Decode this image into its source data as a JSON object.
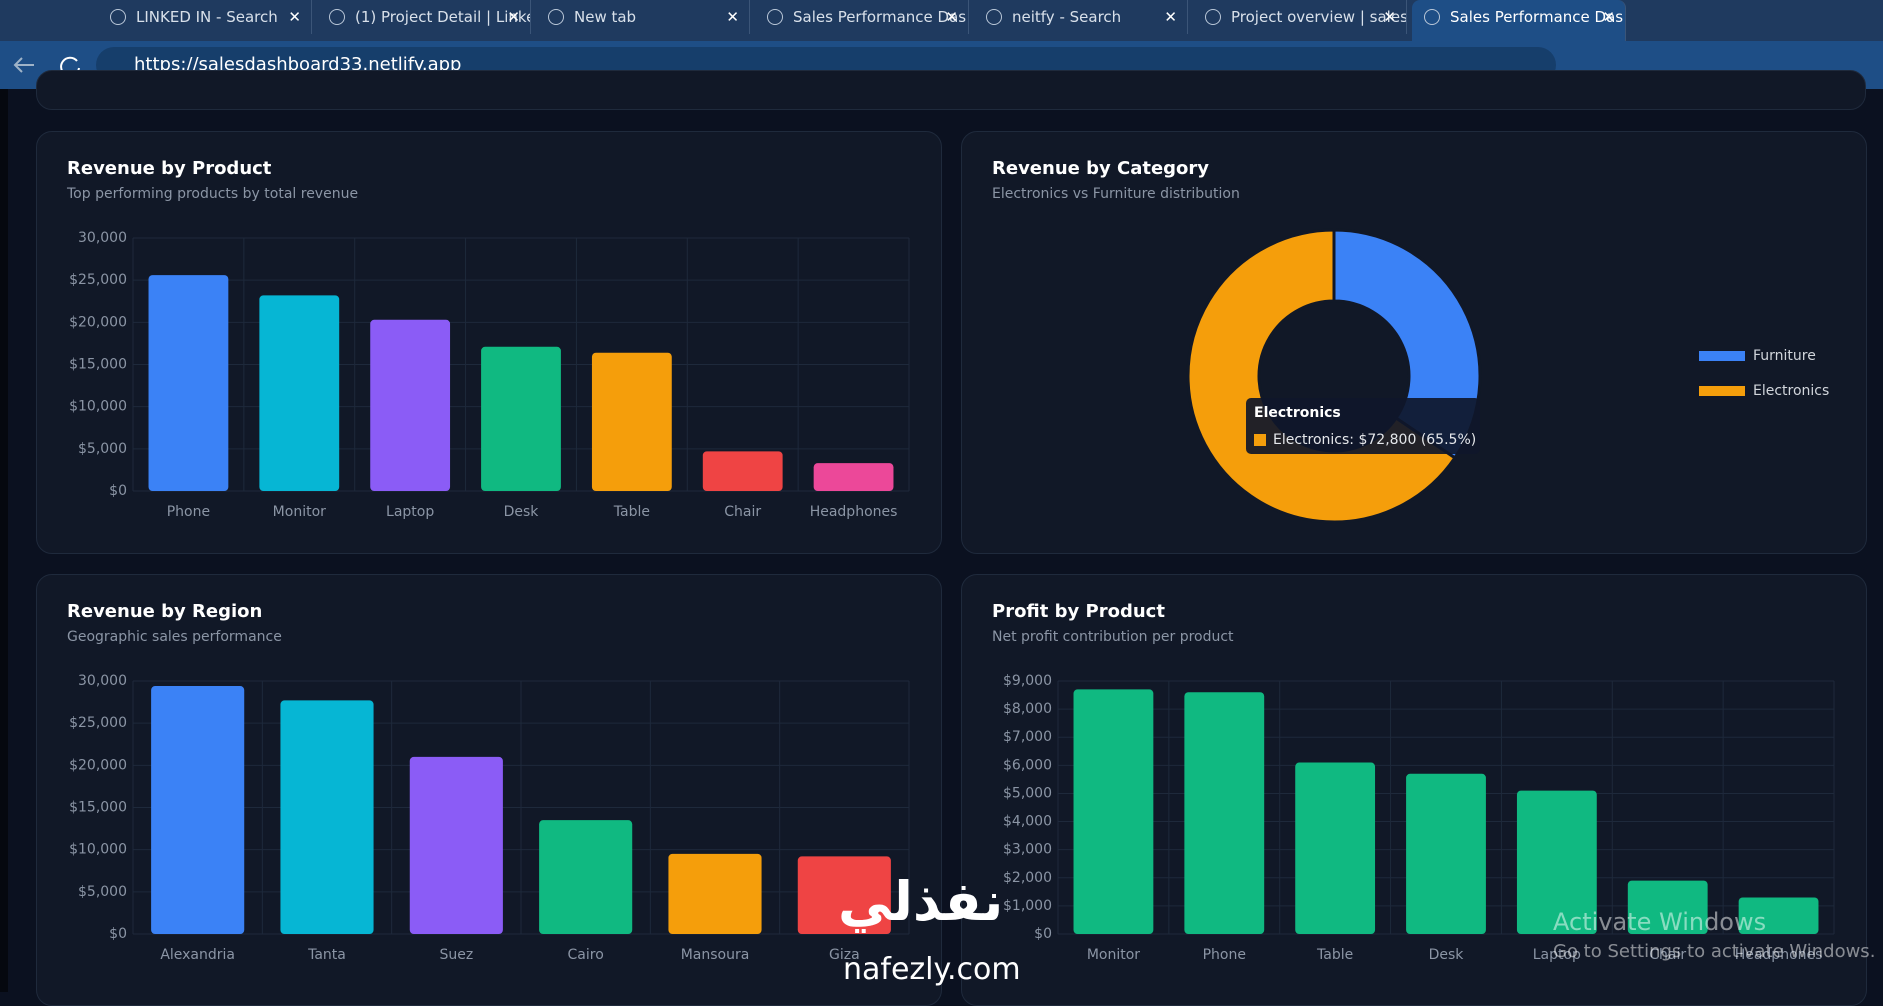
{
  "browser": {
    "tabs": [
      "LINKED IN - Search",
      "(1) Project Detail | Linke",
      "New tab",
      "Sales Performance Das",
      "neitfy - Search",
      "Project overview | sales",
      "Sales Performance Das"
    ],
    "url": "https://salesdashboard33.netlify.app"
  },
  "chart_data": [
    {
      "type": "bar",
      "title": "Revenue by Product",
      "subtitle": "Top performing products by total revenue",
      "categories": [
        "Phone",
        "Monitor",
        "Laptop",
        "Desk",
        "Table",
        "Chair",
        "Headphones"
      ],
      "values": [
        25600,
        23200,
        20300,
        17100,
        16400,
        4700,
        3300
      ],
      "colors": [
        "#3b82f6",
        "#06b6d4",
        "#8b5cf6",
        "#10b981",
        "#f59e0b",
        "#ef4444",
        "#ec4899"
      ],
      "ylim": [
        0,
        30000
      ],
      "yticks": [
        {
          "value": 0,
          "label": "$0"
        },
        {
          "value": 5000,
          "label": "$5,000"
        },
        {
          "value": 10000,
          "label": "$10,000"
        },
        {
          "value": 15000,
          "label": "$15,000"
        },
        {
          "value": 20000,
          "label": "$20,000"
        },
        {
          "value": 25000,
          "label": "$25,000"
        },
        {
          "value": 30000,
          "label": "30,000"
        }
      ],
      "grid": true
    },
    {
      "type": "doughnut",
      "title": "Revenue by Category",
      "subtitle": "Electronics vs Furniture distribution",
      "categories": [
        "Furniture",
        "Electronics"
      ],
      "values": [
        38300,
        72800
      ],
      "colors": [
        "#3b82f6",
        "#f59e0b"
      ],
      "legend": "right",
      "tooltip": {
        "title": "Electronics",
        "label": "Electronics: $72,800 (65.5%)"
      }
    },
    {
      "type": "bar",
      "title": "Revenue by Region",
      "subtitle": "Geographic sales performance",
      "categories": [
        "Alexandria",
        "Tanta",
        "Suez",
        "Cairo",
        "Mansoura",
        "Giza"
      ],
      "values": [
        29400,
        27700,
        21000,
        13500,
        9500,
        9200
      ],
      "colors": [
        "#3b82f6",
        "#06b6d4",
        "#8b5cf6",
        "#10b981",
        "#f59e0b",
        "#ef4444"
      ],
      "ylim": [
        0,
        30000
      ],
      "yticks": [
        {
          "value": 0,
          "label": "$0"
        },
        {
          "value": 5000,
          "label": "$5,000"
        },
        {
          "value": 10000,
          "label": "$10,000"
        },
        {
          "value": 15000,
          "label": "$15,000"
        },
        {
          "value": 20000,
          "label": "$20,000"
        },
        {
          "value": 25000,
          "label": "$25,000"
        },
        {
          "value": 30000,
          "label": "30,000"
        }
      ],
      "grid": true
    },
    {
      "type": "bar",
      "title": "Profit by Product",
      "subtitle": "Net profit contribution per product",
      "categories": [
        "Monitor",
        "Phone",
        "Table",
        "Desk",
        "Laptop",
        "Chair",
        "Headphones"
      ],
      "values": [
        8700,
        8600,
        6100,
        5700,
        5100,
        1900,
        1300
      ],
      "color": "#10b981",
      "ylim": [
        0,
        9000
      ],
      "yticks": [
        {
          "value": 0,
          "label": "$0"
        },
        {
          "value": 1000,
          "label": "$1,000"
        },
        {
          "value": 2000,
          "label": "$2,000"
        },
        {
          "value": 3000,
          "label": "$3,000"
        },
        {
          "value": 4000,
          "label": "$4,000"
        },
        {
          "value": 5000,
          "label": "$5,000"
        },
        {
          "value": 6000,
          "label": "$6,000"
        },
        {
          "value": 7000,
          "label": "$7,000"
        },
        {
          "value": 8000,
          "label": "$8,000"
        },
        {
          "value": 9000,
          "label": "$9,000"
        }
      ],
      "grid": true
    }
  ],
  "watermark": {
    "windows_title": "Activate Windows",
    "windows_text": "Go to Settings to activate Windows.",
    "logo_arabic": "نفذلي",
    "logo_site": "nafezly.com"
  }
}
